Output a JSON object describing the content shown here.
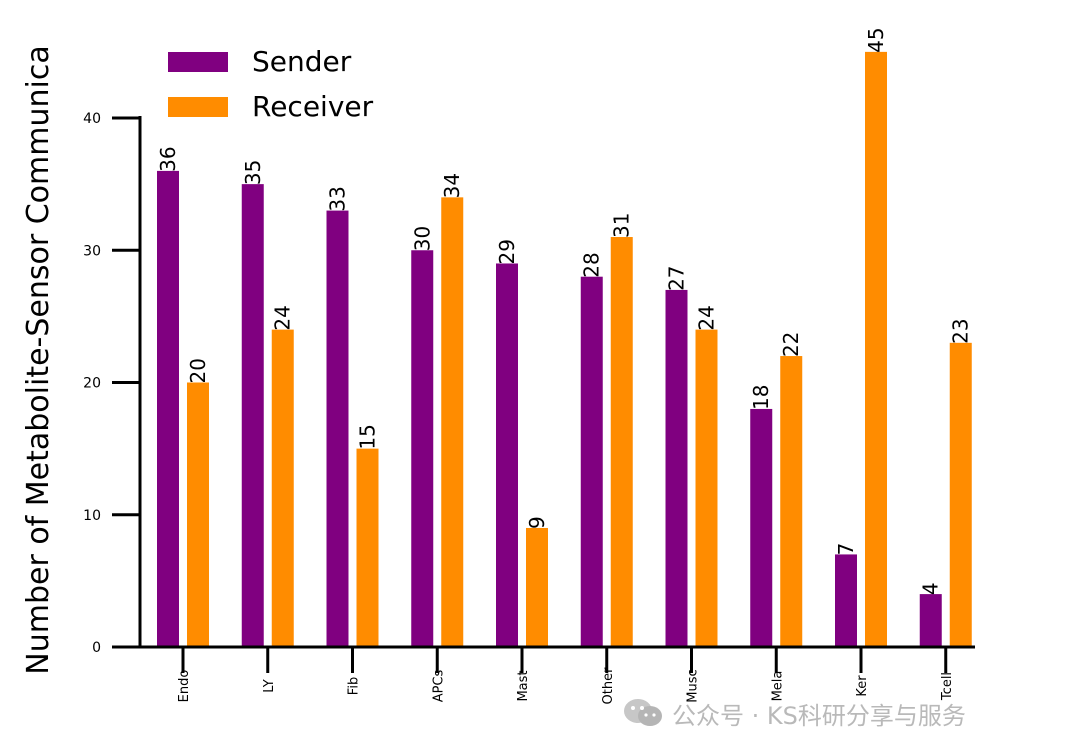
{
  "chart_data": {
    "type": "bar",
    "title": "",
    "xlabel": "",
    "ylabel": "Number of Metabolite-Sensor Communica",
    "ylim": [
      0,
      40
    ],
    "yticks": [
      0,
      10,
      20,
      30,
      40
    ],
    "categories": [
      "Endo",
      "LY",
      "Fib",
      "APCs",
      "Mast",
      "Other",
      "Musc",
      "Mela",
      "Ker",
      "Tcell"
    ],
    "series": [
      {
        "name": "Sender",
        "color": "#800080",
        "values": [
          36,
          35,
          33,
          30,
          29,
          28,
          27,
          18,
          7,
          4
        ]
      },
      {
        "name": "Receiver",
        "color": "#FF8C00",
        "values": [
          20,
          24,
          15,
          34,
          9,
          31,
          24,
          22,
          45,
          23
        ]
      }
    ],
    "legend": {
      "position": "top-left",
      "entries": [
        "Sender",
        "Receiver"
      ]
    },
    "grid": false
  },
  "watermark": {
    "text": "公众号 · KS科研分享与服务",
    "icon": "wechat-icon"
  }
}
